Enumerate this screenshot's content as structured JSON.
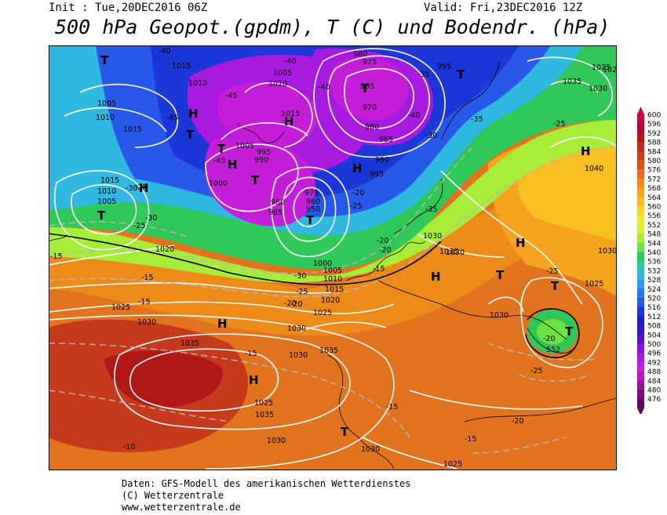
{
  "header": {
    "init": "Init : Tue,20DEC2016 06Z",
    "valid": "Valid: Fri,23DEC2016 12Z",
    "title": "500 hPa Geopot.(gpdm), T (C) und Bodendr. (hPa)"
  },
  "legend": {
    "values": [
      "600",
      "596",
      "592",
      "588",
      "584",
      "580",
      "576",
      "572",
      "568",
      "564",
      "560",
      "556",
      "552",
      "548",
      "544",
      "540",
      "536",
      "532",
      "528",
      "524",
      "520",
      "516",
      "512",
      "508",
      "504",
      "500",
      "496",
      "492",
      "488",
      "484",
      "480",
      "476"
    ],
    "colors": [
      "#cc0044",
      "#b8003a",
      "#b01818",
      "#c02820",
      "#d23a1c",
      "#e0501a",
      "#ea6a1a",
      "#f08a1a",
      "#f4a41e",
      "#f8be1e",
      "#f8d428",
      "#f0ea30",
      "#d8f030",
      "#a8ec3a",
      "#6ee040",
      "#30c858",
      "#30c8a8",
      "#30b8e0",
      "#3098f0",
      "#2a78f0",
      "#2858e8",
      "#1c36d8",
      "#1c1cc8",
      "#3a14c0",
      "#5a10c8",
      "#8418d8",
      "#a81ae0",
      "#c41ed8",
      "#b818b8",
      "#9a1298",
      "#7c0c7c",
      "#5c085c"
    ]
  },
  "map": {
    "highs": [
      "H",
      "H",
      "H",
      "H",
      "H",
      "H",
      "H",
      "H",
      "H",
      "H"
    ],
    "lows": [
      "T",
      "T",
      "T",
      "T",
      "T",
      "T",
      "T",
      "T",
      "T",
      "T",
      "T",
      "T"
    ],
    "pressure_labels": [
      "1015",
      "1010",
      "1005",
      "1010",
      "1015",
      "1010",
      "1005",
      "1015",
      "1020",
      "1025",
      "1030",
      "1035",
      "1035",
      "1030",
      "1030",
      "1025",
      "980",
      "975",
      "985",
      "970",
      "980",
      "985",
      "990",
      "995",
      "1005",
      "1010",
      "1015",
      "995",
      "990",
      "1005",
      "1000",
      "975",
      "980",
      "985",
      "960",
      "950",
      "1000",
      "1005",
      "1010",
      "1015",
      "1020",
      "1025",
      "1030",
      "1030",
      "1035",
      "1030",
      "1025",
      "1035",
      "1030",
      "1025",
      "1025",
      "1040",
      "1030",
      "1035",
      "1030",
      "1030",
      "1025",
      "995"
    ],
    "temp_labels": [
      "-40",
      "-40",
      "-45",
      "-45",
      "-45",
      "-40",
      "-35",
      "-40",
      "-35",
      "-30",
      "-25",
      "-15",
      "-15",
      "-15",
      "-20",
      "-25",
      "-30",
      "-20",
      "-25",
      "-20",
      "-20",
      "-15",
      "-30",
      "-30",
      "-35",
      "-25",
      "-25",
      "-20",
      "-25",
      "-20",
      "-15",
      "-10",
      "-15",
      "-15",
      "-20",
      "-25"
    ],
    "geopot_label": "552"
  },
  "footer": {
    "line1": "Daten: GFS-Modell des amerikanischen Wetterdienstes",
    "line2": "(C) Wetterzentrale",
    "line3": "www.wetterzentrale.de"
  }
}
